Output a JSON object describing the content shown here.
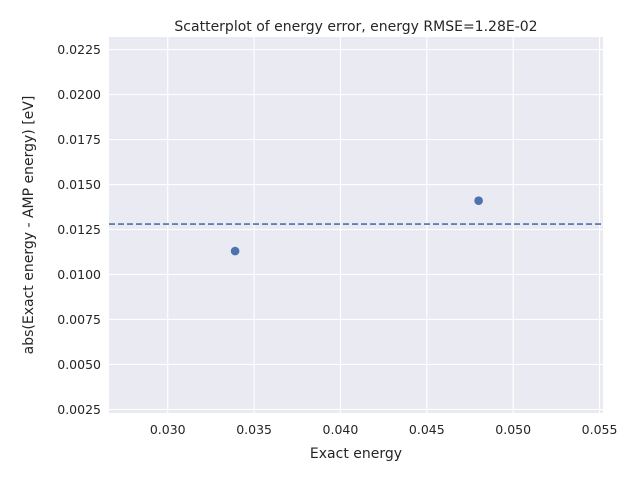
{
  "chart_data": {
    "type": "scatter",
    "title": "Scatterplot of energy error, energy RMSE=1.28E-02",
    "xlabel": "Exact energy",
    "ylabel": "abs(Exact energy - AMP energy) [eV]",
    "xlim": [
      0.0266,
      0.0552
    ],
    "ylim": [
      0.0023,
      0.0232
    ],
    "xticks": [
      0.03,
      0.035,
      0.04,
      0.045,
      0.05,
      0.055
    ],
    "xtick_labels": [
      "0.030",
      "0.035",
      "0.040",
      "0.045",
      "0.050",
      "0.055"
    ],
    "yticks": [
      0.0025,
      0.005,
      0.0075,
      0.01,
      0.0125,
      0.015,
      0.0175,
      0.02,
      0.0225
    ],
    "ytick_labels": [
      "0.0025",
      "0.0050",
      "0.0075",
      "0.0100",
      "0.0125",
      "0.0150",
      "0.0175",
      "0.0200",
      "0.0225"
    ],
    "points": [
      {
        "x": 0.0339,
        "y": 0.0113
      },
      {
        "x": 0.048,
        "y": 0.0141
      }
    ],
    "reference_line": {
      "y": 0.0128,
      "style": "dashed"
    },
    "grid": true,
    "colors": {
      "background": "#eaeaf2",
      "grid": "#ffffff",
      "marker": "#4c72b0",
      "line": "#4c72b0"
    }
  }
}
